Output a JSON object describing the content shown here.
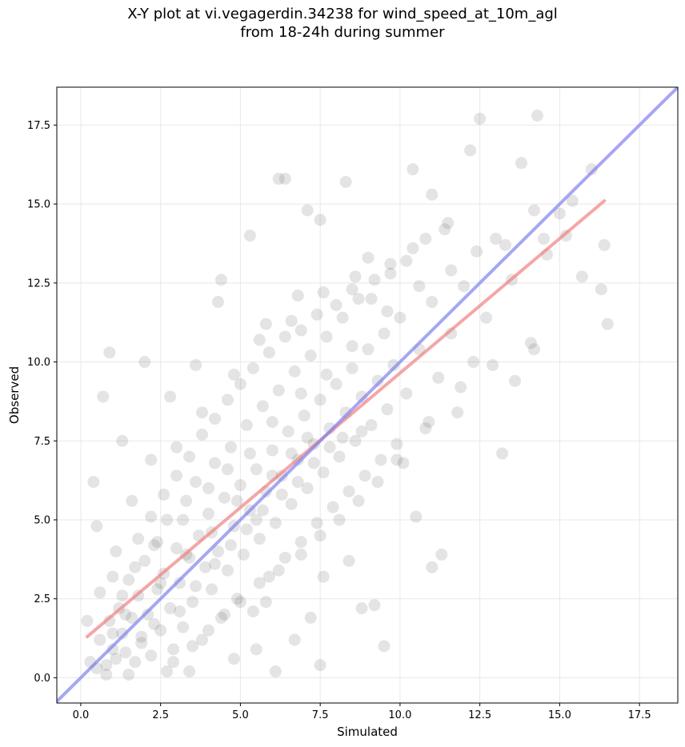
{
  "chart_data": {
    "type": "scatter",
    "title": "X-Y plot at vi.vegagerdin.34238 for wind_speed_at_10m_agl",
    "subtitle": "from 18-24h during summer",
    "xlabel": "Simulated",
    "ylabel": "Observed",
    "xlim": [
      -0.75,
      18.7
    ],
    "ylim": [
      -0.8,
      18.7
    ],
    "xticks": [
      "0.0",
      "2.5",
      "5.0",
      "7.5",
      "10.0",
      "12.5",
      "15.0",
      "17.5"
    ],
    "yticks": [
      "0.0",
      "2.5",
      "5.0",
      "7.5",
      "10.0",
      "12.5",
      "15.0",
      "17.5"
    ],
    "grid": true,
    "point_color": "#555555",
    "points": [
      [
        0.3,
        0.5
      ],
      [
        0.5,
        0.3
      ],
      [
        0.6,
        1.2
      ],
      [
        0.8,
        0.4
      ],
      [
        0.9,
        1.8
      ],
      [
        1.0,
        0.9
      ],
      [
        1.1,
        0.6
      ],
      [
        1.2,
        2.2
      ],
      [
        1.3,
        1.4
      ],
      [
        1.4,
        0.8
      ],
      [
        1.5,
        3.1
      ],
      [
        1.6,
        1.9
      ],
      [
        1.7,
        0.5
      ],
      [
        1.8,
        2.6
      ],
      [
        1.9,
        1.3
      ],
      [
        2.0,
        3.7
      ],
      [
        2.1,
        2.0
      ],
      [
        2.2,
        0.7
      ],
      [
        2.3,
        4.2
      ],
      [
        2.4,
        2.8
      ],
      [
        2.5,
        1.5
      ],
      [
        2.6,
        3.3
      ],
      [
        2.7,
        5.0
      ],
      [
        2.8,
        2.2
      ],
      [
        2.9,
        0.9
      ],
      [
        3.0,
        4.1
      ],
      [
        3.1,
        3.0
      ],
      [
        3.2,
        1.6
      ],
      [
        3.3,
        5.6
      ],
      [
        3.4,
        3.8
      ],
      [
        3.5,
        2.4
      ],
      [
        3.6,
        6.2
      ],
      [
        3.7,
        4.5
      ],
      [
        3.8,
        1.2
      ],
      [
        3.9,
        3.5
      ],
      [
        4.0,
        5.2
      ],
      [
        4.1,
        2.8
      ],
      [
        4.2,
        6.8
      ],
      [
        4.3,
        4.0
      ],
      [
        4.4,
        1.9
      ],
      [
        4.5,
        5.7
      ],
      [
        4.6,
        3.4
      ],
      [
        4.7,
        7.3
      ],
      [
        4.8,
        4.8
      ],
      [
        4.9,
        2.5
      ],
      [
        5.0,
        6.1
      ],
      [
        5.1,
        3.9
      ],
      [
        5.2,
        8.0
      ],
      [
        5.3,
        5.3
      ],
      [
        5.4,
        2.1
      ],
      [
        5.5,
        6.6
      ],
      [
        5.6,
        4.4
      ],
      [
        5.7,
        8.6
      ],
      [
        5.8,
        5.9
      ],
      [
        5.9,
        3.2
      ],
      [
        6.0,
        7.2
      ],
      [
        6.1,
        4.9
      ],
      [
        6.2,
        9.1
      ],
      [
        6.3,
        6.4
      ],
      [
        6.4,
        3.8
      ],
      [
        6.5,
        7.8
      ],
      [
        6.6,
        5.5
      ],
      [
        6.7,
        9.7
      ],
      [
        6.8,
        6.9
      ],
      [
        6.9,
        4.3
      ],
      [
        7.0,
        8.3
      ],
      [
        7.1,
        6.0
      ],
      [
        7.2,
        10.2
      ],
      [
        7.3,
        7.4
      ],
      [
        7.4,
        4.9
      ],
      [
        7.5,
        8.8
      ],
      [
        7.6,
        6.5
      ],
      [
        7.7,
        10.8
      ],
      [
        7.8,
        7.9
      ],
      [
        7.9,
        5.4
      ],
      [
        8.0,
        9.3
      ],
      [
        8.1,
        7.0
      ],
      [
        8.2,
        11.4
      ],
      [
        8.3,
        8.4
      ],
      [
        8.4,
        5.9
      ],
      [
        8.5,
        9.8
      ],
      [
        8.6,
        7.5
      ],
      [
        8.7,
        12.0
      ],
      [
        8.8,
        8.9
      ],
      [
        8.9,
        6.4
      ],
      [
        9.0,
        10.4
      ],
      [
        9.1,
        8.0
      ],
      [
        9.2,
        12.6
      ],
      [
        9.3,
        9.4
      ],
      [
        9.4,
        6.9
      ],
      [
        9.5,
        10.9
      ],
      [
        9.6,
        8.5
      ],
      [
        9.7,
        13.1
      ],
      [
        9.8,
        9.9
      ],
      [
        9.9,
        7.4
      ],
      [
        10.0,
        11.4
      ],
      [
        10.2,
        9.0
      ],
      [
        10.4,
        13.6
      ],
      [
        10.6,
        10.4
      ],
      [
        10.8,
        7.9
      ],
      [
        11.0,
        11.9
      ],
      [
        11.2,
        9.5
      ],
      [
        11.4,
        14.2
      ],
      [
        11.6,
        10.9
      ],
      [
        11.8,
        8.4
      ],
      [
        12.0,
        12.4
      ],
      [
        12.3,
        10.0
      ],
      [
        12.5,
        17.7
      ],
      [
        12.7,
        11.4
      ],
      [
        13.0,
        13.9
      ],
      [
        13.2,
        7.1
      ],
      [
        13.5,
        12.6
      ],
      [
        13.8,
        16.3
      ],
      [
        14.1,
        10.6
      ],
      [
        14.3,
        17.8
      ],
      [
        14.6,
        13.4
      ],
      [
        15.0,
        14.7
      ],
      [
        15.4,
        15.1
      ],
      [
        15.7,
        12.7
      ],
      [
        16.0,
        16.1
      ],
      [
        16.3,
        12.3
      ],
      [
        16.4,
        13.7
      ],
      [
        16.5,
        11.2
      ],
      [
        0.4,
        6.2
      ],
      [
        0.7,
        8.9
      ],
      [
        0.9,
        10.3
      ],
      [
        2.0,
        10.0
      ],
      [
        1.3,
        7.5
      ],
      [
        0.5,
        4.8
      ],
      [
        0.2,
        1.8
      ],
      [
        5.3,
        14.0
      ],
      [
        6.2,
        15.8
      ],
      [
        6.4,
        15.8
      ],
      [
        4.4,
        12.6
      ],
      [
        4.3,
        11.9
      ],
      [
        3.6,
        9.9
      ],
      [
        8.3,
        15.7
      ],
      [
        10.4,
        16.1
      ],
      [
        12.2,
        16.7
      ],
      [
        11.0,
        15.3
      ],
      [
        9.0,
        13.3
      ],
      [
        7.1,
        14.8
      ],
      [
        7.5,
        14.5
      ],
      [
        5.8,
        11.2
      ],
      [
        6.8,
        12.1
      ],
      [
        8.8,
        7.8
      ],
      [
        10.1,
        6.8
      ],
      [
        10.5,
        5.1
      ],
      [
        11.3,
        3.9
      ],
      [
        11.0,
        3.5
      ],
      [
        9.5,
        1.0
      ],
      [
        7.5,
        0.4
      ],
      [
        6.1,
        0.2
      ],
      [
        4.8,
        0.6
      ],
      [
        3.4,
        0.2
      ],
      [
        2.7,
        0.2
      ],
      [
        1.5,
        0.1
      ],
      [
        0.8,
        0.1
      ],
      [
        9.2,
        2.3
      ],
      [
        8.8,
        2.2
      ],
      [
        8.4,
        3.7
      ],
      [
        7.6,
        3.2
      ],
      [
        7.2,
        1.9
      ],
      [
        6.7,
        1.2
      ],
      [
        5.5,
        0.9
      ],
      [
        5.8,
        2.4
      ],
      [
        1.1,
        4.0
      ],
      [
        1.6,
        5.6
      ],
      [
        2.2,
        6.9
      ],
      [
        2.8,
        8.9
      ],
      [
        3.0,
        7.3
      ],
      [
        3.8,
        8.4
      ],
      [
        4.8,
        9.6
      ],
      [
        5.6,
        10.7
      ],
      [
        6.6,
        11.3
      ],
      [
        7.6,
        12.2
      ],
      [
        8.6,
        12.7
      ],
      [
        9.6,
        11.6
      ],
      [
        10.6,
        12.4
      ],
      [
        11.6,
        12.9
      ],
      [
        12.4,
        13.5
      ],
      [
        13.3,
        13.7
      ],
      [
        14.2,
        14.8
      ],
      [
        14.5,
        13.9
      ],
      [
        15.2,
        14.0
      ],
      [
        12.9,
        9.9
      ],
      [
        13.6,
        9.4
      ],
      [
        14.2,
        10.4
      ],
      [
        11.9,
        9.2
      ],
      [
        10.9,
        8.1
      ],
      [
        1.9,
        1.1
      ],
      [
        2.3,
        1.7
      ],
      [
        3.1,
        2.1
      ],
      [
        3.6,
        2.9
      ],
      [
        4.2,
        3.6
      ],
      [
        4.7,
        4.2
      ],
      [
        5.2,
        4.7
      ],
      [
        5.7,
        5.3
      ],
      [
        6.3,
        5.8
      ],
      [
        6.8,
        6.2
      ],
      [
        7.3,
        6.8
      ],
      [
        7.8,
        7.3
      ],
      [
        8.2,
        7.6
      ],
      [
        1.0,
        1.4
      ],
      [
        1.4,
        2.0
      ],
      [
        2.5,
        3.0
      ],
      [
        3.3,
        3.9
      ],
      [
        4.1,
        4.6
      ],
      [
        4.9,
        5.6
      ],
      [
        5.5,
        5.0
      ],
      [
        6.0,
        6.4
      ],
      [
        6.6,
        7.1
      ],
      [
        7.1,
        7.6
      ],
      [
        1.7,
        3.5
      ],
      [
        2.4,
        4.3
      ],
      [
        3.2,
        5.0
      ],
      [
        4.0,
        6.0
      ],
      [
        4.6,
        6.6
      ],
      [
        5.3,
        7.1
      ],
      [
        6.0,
        8.1
      ],
      [
        6.9,
        9.0
      ],
      [
        7.7,
        9.6
      ],
      [
        8.5,
        10.5
      ],
      [
        2.9,
        0.5
      ],
      [
        3.5,
        1.0
      ],
      [
        4.0,
        1.5
      ],
      [
        4.5,
        2.0
      ],
      [
        5.0,
        2.4
      ],
      [
        5.6,
        3.0
      ],
      [
        6.2,
        3.4
      ],
      [
        6.9,
        3.9
      ],
      [
        7.5,
        4.5
      ],
      [
        8.1,
        5.0
      ],
      [
        8.7,
        5.6
      ],
      [
        9.3,
        6.2
      ],
      [
        9.9,
        6.9
      ],
      [
        0.6,
        2.7
      ],
      [
        1.0,
        3.2
      ],
      [
        1.3,
        2.6
      ],
      [
        1.8,
        4.4
      ],
      [
        2.2,
        5.1
      ],
      [
        2.6,
        5.8
      ],
      [
        3.0,
        6.4
      ],
      [
        3.4,
        7.0
      ],
      [
        3.8,
        7.7
      ],
      [
        4.2,
        8.2
      ],
      [
        4.6,
        8.8
      ],
      [
        5.0,
        9.3
      ],
      [
        5.4,
        9.8
      ],
      [
        5.9,
        10.3
      ],
      [
        6.4,
        10.8
      ],
      [
        6.9,
        11.0
      ],
      [
        7.4,
        11.5
      ],
      [
        8.0,
        11.8
      ],
      [
        8.5,
        12.3
      ],
      [
        9.1,
        12.0
      ],
      [
        9.7,
        12.8
      ],
      [
        10.2,
        13.2
      ],
      [
        10.8,
        13.9
      ],
      [
        11.5,
        14.4
      ]
    ],
    "series": [
      {
        "name": "",
        "type": "regression",
        "color": "#f08080",
        "x": [
          0.2,
          16.4
        ],
        "y": [
          1.3,
          15.1
        ]
      },
      {
        "name": "",
        "type": "identity",
        "color": "#8080f0",
        "x": [
          -0.75,
          18.7
        ],
        "y": [
          -0.75,
          18.7
        ]
      }
    ]
  }
}
